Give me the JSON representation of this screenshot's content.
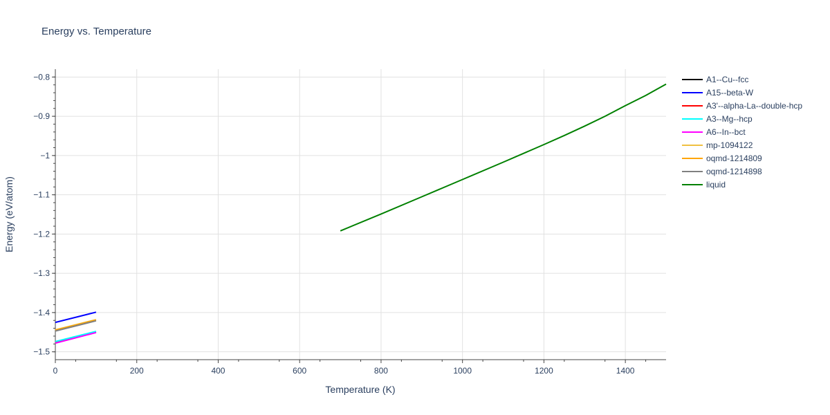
{
  "chart_data": {
    "type": "line",
    "title": "Energy vs. Temperature",
    "xlabel": "Temperature (K)",
    "ylabel": "Energy (eV/atom)",
    "xlim": [
      0,
      1500
    ],
    "ylim": [
      -1.52,
      -0.78
    ],
    "xticks": [
      0,
      200,
      400,
      600,
      800,
      1000,
      1200,
      1400
    ],
    "xtick_labels": [
      "0",
      "200",
      "400",
      "600",
      "800",
      "1000",
      "1200",
      "1400"
    ],
    "yticks": [
      -1.5,
      -1.4,
      -1.3,
      -1.2,
      -1.1,
      -1.0,
      -0.9,
      -0.8
    ],
    "ytick_labels": [
      "−1.5",
      "−1.4",
      "−1.3",
      "−1.2",
      "−1.1",
      "−1",
      "−0.9",
      "−0.8"
    ],
    "grid": true,
    "legend_position": "right",
    "series": [
      {
        "name": "A1--Cu--fcc",
        "color": "#000000",
        "x": [
          0,
          100
        ],
        "y": [
          -1.475,
          -1.449
        ]
      },
      {
        "name": "A15--beta-W",
        "color": "#0000ff",
        "x": [
          0,
          100
        ],
        "y": [
          -1.425,
          -1.399
        ]
      },
      {
        "name": "A3'--alpha-La--double-hcp",
        "color": "#ff0000",
        "x": [
          0,
          100
        ],
        "y": [
          -1.476,
          -1.45
        ]
      },
      {
        "name": "A3--Mg--hcp",
        "color": "#00ffff",
        "x": [
          0,
          100
        ],
        "y": [
          -1.474,
          -1.448
        ]
      },
      {
        "name": "A6--In--bct",
        "color": "#ff00ff",
        "x": [
          0,
          100
        ],
        "y": [
          -1.478,
          -1.451
        ]
      },
      {
        "name": "mp-1094122",
        "color": "#f0c040",
        "x": [
          0,
          100
        ],
        "y": [
          -1.444,
          -1.418
        ]
      },
      {
        "name": "oqmd-1214809",
        "color": "#ffa500",
        "x": [
          0,
          100
        ],
        "y": [
          -1.445,
          -1.419
        ]
      },
      {
        "name": "oqmd-1214898",
        "color": "#808080",
        "x": [
          0,
          100
        ],
        "y": [
          -1.447,
          -1.421
        ]
      },
      {
        "name": "liquid",
        "color": "#008000",
        "x": [
          700,
          800,
          900,
          1000,
          1100,
          1200,
          1250,
          1300,
          1350,
          1400,
          1450,
          1500
        ],
        "y": [
          -1.192,
          -1.149,
          -1.105,
          -1.061,
          -1.017,
          -0.972,
          -0.949,
          -0.925,
          -0.9,
          -0.873,
          -0.847,
          -0.818
        ]
      }
    ]
  }
}
